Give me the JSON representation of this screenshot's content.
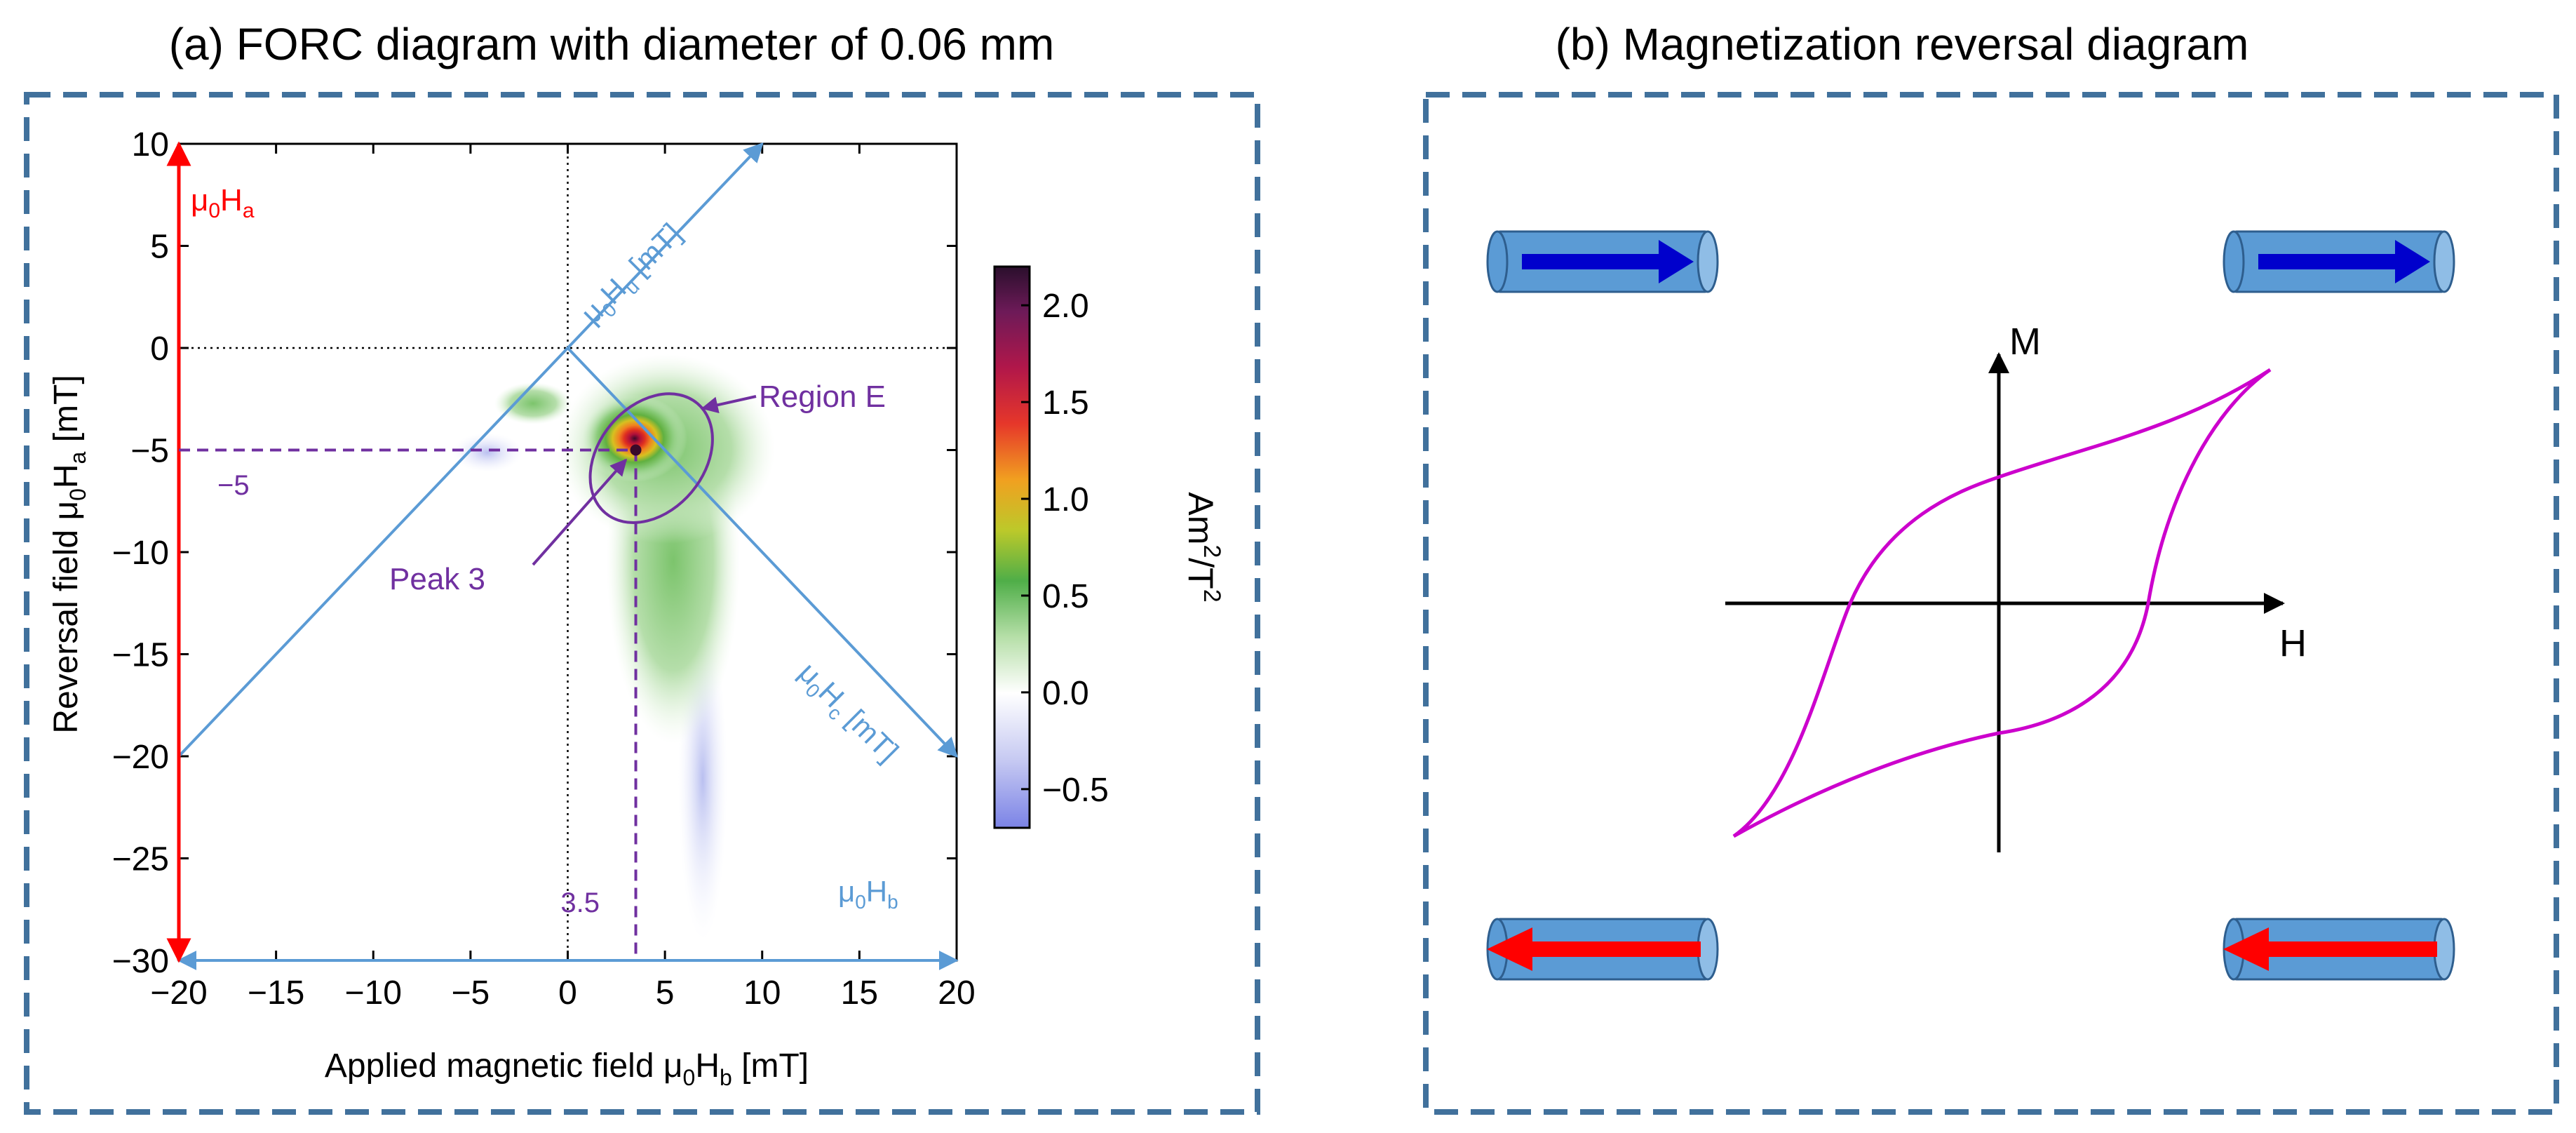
{
  "colors": {
    "frame": "#41719C",
    "axis_blue": "#5B9BD5",
    "red_axis": "#FF0000",
    "purple": "#7030A0",
    "loop": "#CC00CC",
    "tube_fill": "#5B9BD5",
    "tube_stroke": "#2E5E8E",
    "arrow_up": "#0000CC",
    "arrow_down": "#FF0000"
  },
  "panel_a": {
    "title": "(a) FORC diagram with diameter of 0.06 mm",
    "chart_data": {
      "type": "heatmap",
      "xlabel": "Applied magnetic field μ₀Hᵦ [mT]",
      "xlabel_main": "Applied magnetic field μ",
      "xlabel_sub0": "0",
      "xlabel_mid": "H",
      "xlabel_subb": "b",
      "xlabel_unit": " [mT]",
      "ylabel_main": "Reversal field μ",
      "ylabel_sub0": "0",
      "ylabel_mid": "H",
      "ylabel_suba": "a",
      "ylabel_unit": " [mT]",
      "xlim": [
        -20,
        20
      ],
      "ylim": [
        -30,
        10
      ],
      "x_ticks": [
        -20,
        -15,
        -10,
        -5,
        0,
        5,
        10,
        15,
        20
      ],
      "x_tick_labels": [
        "−20",
        "−15",
        "−10",
        "−5",
        "0",
        "5",
        "10",
        "15",
        "20"
      ],
      "y_ticks": [
        10,
        5,
        0,
        -5,
        -10,
        -15,
        -20,
        -25,
        -30
      ],
      "y_tick_labels": [
        "10",
        "5",
        "0",
        "−5",
        "−10",
        "−15",
        "−20",
        "−25",
        "−30"
      ],
      "colorbar": {
        "range": [
          -0.7,
          2.2
        ],
        "ticks": [
          2.0,
          1.5,
          1.0,
          0.5,
          0.0,
          -0.5
        ],
        "tick_labels": [
          "2.0",
          "1.5",
          "1.0",
          "0.5",
          "0.0",
          "−0.5"
        ],
        "label": "Am²/T²",
        "label_main_1": "Am",
        "label_sup_1": "2",
        "label_main_2": "/T",
        "label_sup_2": "2"
      },
      "peak": {
        "x": 3.5,
        "y": -5,
        "label": "Peak 3",
        "value": 2.1
      },
      "region": {
        "label": "Region E",
        "center": [
          4.3,
          -5.4
        ]
      },
      "guide_labels": {
        "x_value": "3.5",
        "y_value": "−5"
      },
      "rotated_axes": {
        "hu_label": "μ₀Hu [mT]",
        "hu_main": "μ",
        "hu_sub0": "0",
        "hu_mid": "H",
        "hu_subu": "u",
        "hu_unit": " [mT]",
        "hc_main": "μ",
        "hc_sub0": "0",
        "hc_mid": "H",
        "hc_subc": "c",
        "hc_unit": " [mT]",
        "hb_main": "μ",
        "hb_sub0": "0",
        "hb_mid": "H",
        "hb_subb": "b",
        "ha_main": "μ",
        "ha_sub0": "0",
        "ha_mid": "H",
        "ha_suba": "a"
      }
    }
  },
  "panel_b": {
    "title": "(b) Magnetization reversal diagram",
    "axis_m": "M",
    "axis_h": "H"
  }
}
